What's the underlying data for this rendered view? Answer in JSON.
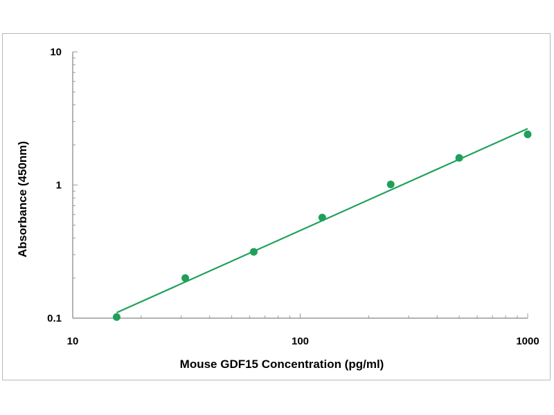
{
  "chart_data": {
    "type": "scatter",
    "title": "",
    "xlabel": "Mouse GDF15 Concentration (pg/ml)",
    "ylabel": "Absorbance (450nm)",
    "x_scale": "log",
    "y_scale": "log",
    "xlim": [
      10,
      1000
    ],
    "ylim": [
      0.1,
      10
    ],
    "x_ticks": [
      10,
      100,
      1000
    ],
    "x_tick_labels": [
      "10",
      "100",
      "1000"
    ],
    "y_ticks": [
      0.1,
      1,
      10
    ],
    "y_tick_labels": [
      "0.1",
      "1",
      "10"
    ],
    "grid": false,
    "legend": "none",
    "series": [
      {
        "x": [
          15.6,
          31.25,
          62.5,
          125,
          250,
          500,
          1000
        ],
        "y": [
          0.102,
          0.2,
          0.315,
          0.57,
          1.01,
          1.6,
          2.4
        ]
      }
    ],
    "fit_line": {
      "x": [
        15.6,
        1000
      ],
      "y": [
        0.11,
        2.65
      ]
    },
    "colors": {
      "series": "#1fa05a",
      "axis": "#9a9a9a",
      "text": "#000000"
    }
  }
}
